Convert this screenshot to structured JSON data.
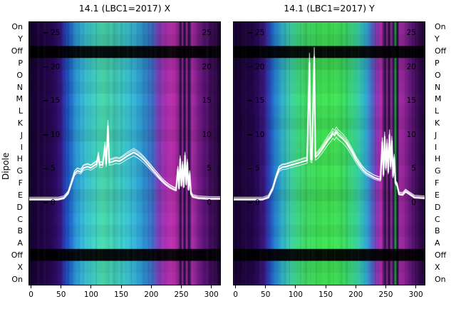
{
  "dipole_axis": {
    "label": "Dipole",
    "rows": [
      "On",
      "Y",
      "Off",
      "P",
      "O",
      "N",
      "M",
      "L",
      "K",
      "J",
      "I",
      "H",
      "G",
      "F",
      "E",
      "D",
      "C",
      "B",
      "A",
      "Off",
      "X",
      "On"
    ]
  },
  "chart_data": [
    {
      "type": "heatmap",
      "title": "14.1 (LBC1=2017) X",
      "x_range": [
        -3,
        317
      ],
      "x_ticks": [
        0,
        50,
        100,
        150,
        200,
        250,
        300
      ],
      "overlay_y_ticks": [
        0,
        5,
        10,
        15,
        20,
        25
      ],
      "overlay_line_color": "#ffffff",
      "rows": [
        "On",
        "Y",
        "Off",
        "P",
        "O",
        "N",
        "M",
        "L",
        "K",
        "J",
        "I",
        "H",
        "G",
        "F",
        "E",
        "D",
        "C",
        "B",
        "A",
        "Off",
        "X",
        "On"
      ],
      "row_brightness": [
        0.95,
        0.9,
        0.06,
        0.92,
        1.0,
        0.96,
        1.04,
        0.98,
        1.0,
        0.94,
        1.02,
        1.0,
        0.97,
        1.03,
        0.95,
        1.0,
        1.05,
        1.0,
        1.06,
        0.06,
        0.96,
        1.0
      ],
      "color_stops": [
        [
          -3,
          "#15022d"
        ],
        [
          30,
          "#24064a"
        ],
        [
          48,
          "#311070"
        ],
        [
          56,
          "#2838ae"
        ],
        [
          64,
          "#1e5fc2"
        ],
        [
          76,
          "#2b97d2"
        ],
        [
          90,
          "#37b9ce"
        ],
        [
          106,
          "#3ec9bb"
        ],
        [
          122,
          "#46d1a4"
        ],
        [
          138,
          "#40ccb2"
        ],
        [
          156,
          "#3ac2c5"
        ],
        [
          174,
          "#31add1"
        ],
        [
          190,
          "#2a8cca"
        ],
        [
          204,
          "#3c64c0"
        ],
        [
          214,
          "#7d3cb4"
        ],
        [
          226,
          "#a52cab"
        ],
        [
          238,
          "#b52aa5"
        ],
        [
          247,
          "#8f2390"
        ],
        [
          251,
          "#1c1038"
        ],
        [
          254,
          "#a028a0"
        ],
        [
          257,
          "#140c30"
        ],
        [
          261,
          "#9a279c"
        ],
        [
          265,
          "#120a2c"
        ],
        [
          269,
          "#a02aa2"
        ],
        [
          277,
          "#8c2492"
        ],
        [
          289,
          "#5e1478"
        ],
        [
          304,
          "#380a50"
        ],
        [
          317,
          "#1e0434"
        ]
      ],
      "line_points": [
        [
          -3,
          0.3
        ],
        [
          20,
          0.3
        ],
        [
          45,
          0.3
        ],
        [
          55,
          0.5
        ],
        [
          62,
          1.2
        ],
        [
          68,
          2.8
        ],
        [
          73,
          4.2
        ],
        [
          78,
          4.6
        ],
        [
          83,
          4.4
        ],
        [
          88,
          5.0
        ],
        [
          95,
          5.2
        ],
        [
          100,
          5.0
        ],
        [
          105,
          5.3
        ],
        [
          110,
          5.6
        ],
        [
          113,
          6.8
        ],
        [
          115,
          5.4
        ],
        [
          120,
          5.5
        ],
        [
          124,
          8.2
        ],
        [
          126,
          5.6
        ],
        [
          129,
          11.2
        ],
        [
          131,
          5.8
        ],
        [
          136,
          5.9
        ],
        [
          142,
          6.1
        ],
        [
          148,
          6.0
        ],
        [
          154,
          6.3
        ],
        [
          160,
          6.7
        ],
        [
          166,
          7.0
        ],
        [
          172,
          7.3
        ],
        [
          178,
          7.0
        ],
        [
          184,
          6.6
        ],
        [
          190,
          6.1
        ],
        [
          196,
          5.5
        ],
        [
          202,
          4.9
        ],
        [
          208,
          4.3
        ],
        [
          214,
          3.7
        ],
        [
          220,
          3.1
        ],
        [
          226,
          2.6
        ],
        [
          232,
          2.2
        ],
        [
          238,
          1.9
        ],
        [
          243,
          1.7
        ],
        [
          246,
          4.8
        ],
        [
          248,
          2.0
        ],
        [
          250,
          6.3
        ],
        [
          252,
          2.4
        ],
        [
          254,
          5.5
        ],
        [
          256,
          2.2
        ],
        [
          258,
          6.8
        ],
        [
          260,
          2.6
        ],
        [
          262,
          5.8
        ],
        [
          264,
          1.8
        ],
        [
          266,
          4.2
        ],
        [
          268,
          1.2
        ],
        [
          271,
          0.7
        ],
        [
          280,
          0.5
        ],
        [
          300,
          0.4
        ],
        [
          317,
          0.4
        ]
      ]
    },
    {
      "type": "heatmap",
      "title": "14.1 (LBC1=2017) Y",
      "x_range": [
        -3,
        317
      ],
      "x_ticks": [
        0,
        50,
        100,
        150,
        200,
        250,
        300
      ],
      "overlay_y_ticks": [
        0,
        5,
        10,
        15,
        20,
        25
      ],
      "overlay_line_color": "#ffffff",
      "rows": [
        "On",
        "Y",
        "Off",
        "P",
        "O",
        "N",
        "M",
        "L",
        "K",
        "J",
        "I",
        "H",
        "G",
        "F",
        "E",
        "D",
        "C",
        "B",
        "A",
        "Off",
        "X",
        "On"
      ],
      "row_brightness": [
        0.97,
        0.92,
        0.06,
        0.9,
        0.98,
        1.0,
        1.05,
        1.0,
        0.95,
        1.02,
        1.0,
        0.97,
        1.04,
        1.0,
        0.93,
        1.0,
        1.03,
        0.98,
        1.05,
        0.06,
        0.95,
        1.0
      ],
      "color_stops": [
        [
          -3,
          "#15022d"
        ],
        [
          30,
          "#24064a"
        ],
        [
          48,
          "#341277"
        ],
        [
          56,
          "#2b42b6"
        ],
        [
          64,
          "#2070c6"
        ],
        [
          76,
          "#2fa8cc"
        ],
        [
          90,
          "#39c6a8"
        ],
        [
          104,
          "#3bcf7c"
        ],
        [
          118,
          "#3dd362"
        ],
        [
          134,
          "#3cd556"
        ],
        [
          152,
          "#3eda50"
        ],
        [
          168,
          "#40da54"
        ],
        [
          184,
          "#3cd462"
        ],
        [
          198,
          "#38cd86"
        ],
        [
          210,
          "#33bfae"
        ],
        [
          220,
          "#2e9ecd"
        ],
        [
          229,
          "#4a64c0"
        ],
        [
          237,
          "#8c35b2"
        ],
        [
          245,
          "#b02ba8"
        ],
        [
          251,
          "#1c1038"
        ],
        [
          254,
          "#a028a0"
        ],
        [
          257,
          "#140c30"
        ],
        [
          261,
          "#9a279c"
        ],
        [
          265,
          "#161038"
        ],
        [
          268,
          "#2faa44"
        ],
        [
          271,
          "#12102e"
        ],
        [
          275,
          "#a02aa2"
        ],
        [
          283,
          "#8c2492"
        ],
        [
          294,
          "#5e1478"
        ],
        [
          306,
          "#380a50"
        ],
        [
          317,
          "#1e0434"
        ]
      ],
      "line_points": [
        [
          -3,
          0.3
        ],
        [
          20,
          0.3
        ],
        [
          45,
          0.3
        ],
        [
          55,
          0.6
        ],
        [
          62,
          1.8
        ],
        [
          68,
          3.6
        ],
        [
          73,
          4.8
        ],
        [
          78,
          5.1
        ],
        [
          85,
          5.2
        ],
        [
          92,
          5.4
        ],
        [
          100,
          5.6
        ],
        [
          108,
          5.8
        ],
        [
          115,
          6.0
        ],
        [
          120,
          6.1
        ],
        [
          124,
          20.6
        ],
        [
          126,
          6.3
        ],
        [
          128,
          6.2
        ],
        [
          132,
          21.4
        ],
        [
          134,
          6.6
        ],
        [
          138,
          6.9
        ],
        [
          144,
          7.6
        ],
        [
          150,
          8.4
        ],
        [
          156,
          9.2
        ],
        [
          160,
          9.6
        ],
        [
          163,
          10.1
        ],
        [
          166,
          9.8
        ],
        [
          169,
          10.3
        ],
        [
          172,
          9.9
        ],
        [
          176,
          9.6
        ],
        [
          180,
          9.3
        ],
        [
          185,
          8.8
        ],
        [
          190,
          8.1
        ],
        [
          196,
          7.2
        ],
        [
          202,
          6.2
        ],
        [
          208,
          5.4
        ],
        [
          214,
          4.7
        ],
        [
          220,
          4.2
        ],
        [
          226,
          3.9
        ],
        [
          232,
          3.6
        ],
        [
          238,
          3.4
        ],
        [
          243,
          3.3
        ],
        [
          246,
          8.8
        ],
        [
          248,
          4.0
        ],
        [
          250,
          9.6
        ],
        [
          252,
          5.0
        ],
        [
          254,
          8.6
        ],
        [
          256,
          4.4
        ],
        [
          258,
          9.9
        ],
        [
          260,
          5.2
        ],
        [
          262,
          9.0
        ],
        [
          264,
          3.8
        ],
        [
          266,
          6.5
        ],
        [
          268,
          2.8
        ],
        [
          271,
          2.4
        ],
        [
          274,
          1.1
        ],
        [
          280,
          1.0
        ],
        [
          285,
          1.5
        ],
        [
          290,
          1.2
        ],
        [
          300,
          0.6
        ],
        [
          317,
          0.5
        ]
      ]
    }
  ]
}
